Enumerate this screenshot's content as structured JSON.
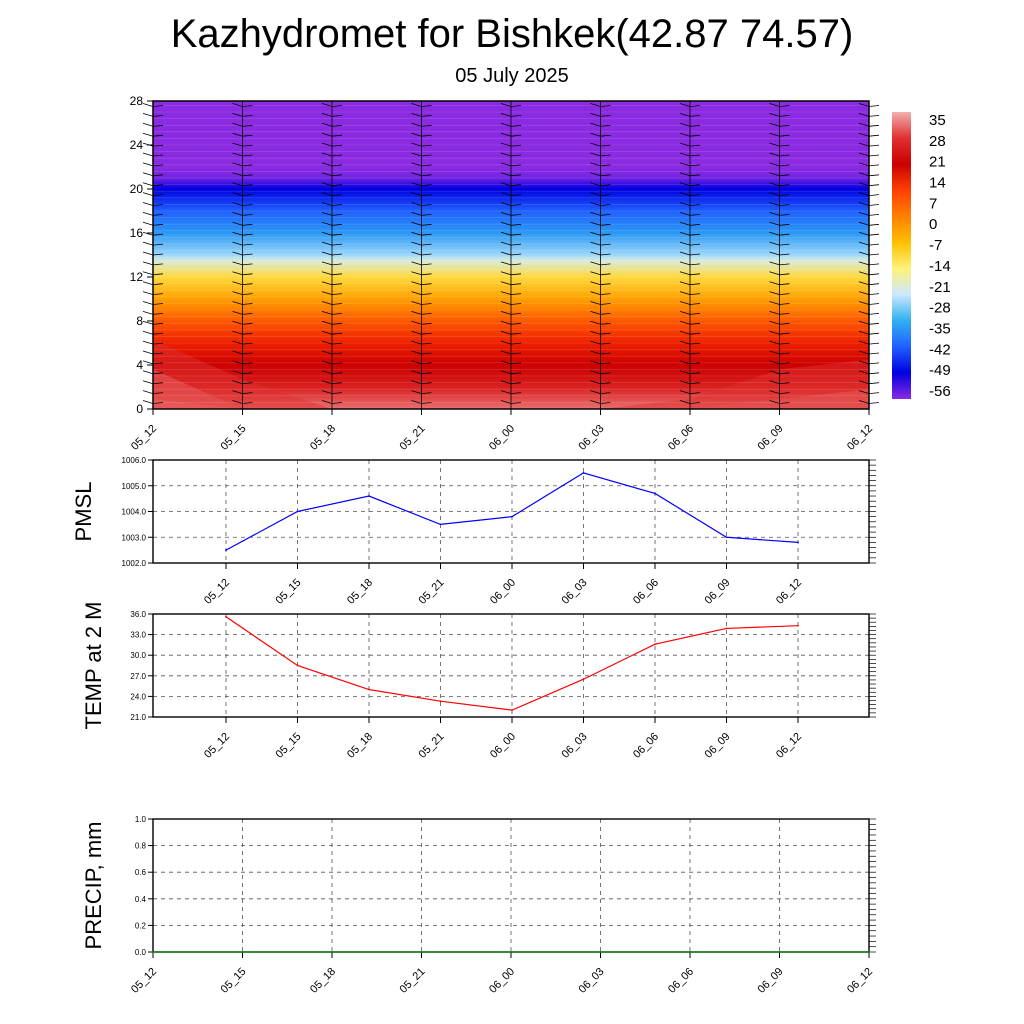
{
  "header": {
    "title": "Kazhydromet for Bishkek(42.87 74.57)",
    "subtitle": "05 July 2025"
  },
  "chart_data": [
    {
      "type": "heatmap",
      "title": "",
      "xlabel": "",
      "ylabel": "",
      "x_ticks": [
        "05_12",
        "05_15",
        "05_18",
        "05_21",
        "06_00",
        "06_03",
        "06_06",
        "06_09",
        "06_12"
      ],
      "ylim": [
        0,
        28
      ],
      "y_ticks": [
        0,
        4,
        8,
        12,
        16,
        20,
        24,
        28
      ],
      "colorbar": {
        "labels": [
          "35",
          "28",
          "21",
          "14",
          "7",
          "0",
          "-7",
          "-14",
          "-21",
          "-28",
          "-35",
          "-42",
          "-49",
          "-56"
        ]
      },
      "temperature_profile": [
        {
          "height": 0,
          "value": 33
        },
        {
          "height": 2,
          "value": 28
        },
        {
          "height": 4,
          "value": 24
        },
        {
          "height": 6,
          "value": 20
        },
        {
          "height": 8,
          "value": 14
        },
        {
          "height": 10,
          "value": 6
        },
        {
          "height": 12,
          "value": -4
        },
        {
          "height": 13.5,
          "value": -13
        },
        {
          "height": 14,
          "value": -17
        },
        {
          "height": 16,
          "value": -28
        },
        {
          "height": 18,
          "value": -38
        },
        {
          "height": 20,
          "value": -50
        },
        {
          "height": 21,
          "value": -55
        },
        {
          "height": 22,
          "value": -57
        },
        {
          "height": 28,
          "value": -59
        }
      ],
      "surface_warm_anomaly": [
        {
          "time": "05_12",
          "value": 36
        },
        {
          "time": "05_15",
          "value": 32
        },
        {
          "time": "05_18",
          "value": 28
        },
        {
          "time": "05_21",
          "value": 26
        },
        {
          "time": "06_00",
          "value": 24
        },
        {
          "time": "06_03",
          "value": 26
        },
        {
          "time": "06_06",
          "value": 30
        },
        {
          "time": "06_09",
          "value": 33
        },
        {
          "time": "06_12",
          "value": 34
        }
      ],
      "colors": {
        "colorbar_stops": [
          "#f2b0b0",
          "#e03030",
          "#cc0000",
          "#ff4000",
          "#ff8000",
          "#ffc000",
          "#fff27a",
          "#cce8ff",
          "#30b0f0",
          "#2060ff",
          "#0000e0",
          "#8a2be2"
        ]
      }
    },
    {
      "type": "line",
      "ylabel": "PMSL",
      "categories": [
        "05_12",
        "05_15",
        "05_18",
        "05_21",
        "06_00",
        "06_03",
        "06_06",
        "06_09",
        "06_12"
      ],
      "values": [
        1002.5,
        1004.0,
        1004.6,
        1003.5,
        1003.8,
        1005.5,
        1004.7,
        1003.0,
        1002.8
      ],
      "ylim": [
        1002.0,
        1006.0
      ],
      "y_ticks": [
        "1002.0",
        "1003.0",
        "1004.0",
        "1005.0",
        "1006.0"
      ],
      "color": "#0000ff",
      "grid": true
    },
    {
      "type": "line",
      "ylabel": "TEMP at 2 M",
      "categories": [
        "05_12",
        "05_15",
        "05_18",
        "05_21",
        "06_00",
        "06_03",
        "06_06",
        "06_09",
        "06_12"
      ],
      "values": [
        35.6,
        28.5,
        25.0,
        23.3,
        22.0,
        26.5,
        31.6,
        33.9,
        34.3
      ],
      "ylim": [
        21.0,
        36.0
      ],
      "y_ticks": [
        "21.0",
        "24.0",
        "27.0",
        "30.0",
        "33.0",
        "36.0"
      ],
      "color": "#ff0000",
      "grid": true
    },
    {
      "type": "line",
      "ylabel": "PRECIP, mm",
      "categories": [
        "05_12",
        "05_15",
        "05_18",
        "05_21",
        "06_00",
        "06_03",
        "06_06",
        "06_09",
        "06_12"
      ],
      "values": [
        0,
        0,
        0,
        0,
        0,
        0,
        0,
        0,
        0
      ],
      "ylim": [
        0.0,
        1.0
      ],
      "y_ticks": [
        "0.0",
        "0.2",
        "0.4",
        "0.6",
        "0.8",
        "1.0"
      ],
      "color": "#008000",
      "grid": true
    }
  ]
}
